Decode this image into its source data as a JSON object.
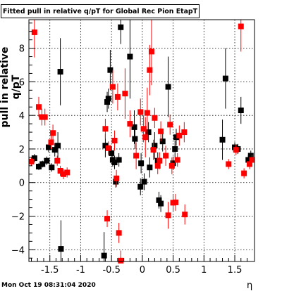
{
  "title": "Fitted pull in relative q/pT  for Global Rec Pion EtapT",
  "timestamp": "Mon Oct 19 08:31:04 2020",
  "chart_data": {
    "type": "scatter",
    "title": "Fitted pull in relative q/pT  for Global Rec Pion EtapT",
    "xlabel": "η",
    "ylabel": "pull in relative q/pT",
    "xlim": [
      -1.84,
      1.82
    ],
    "ylim": [
      -4.7,
      9.7
    ],
    "xticks": [
      -1.5,
      -1,
      -0.5,
      0,
      0.5,
      1,
      1.5
    ],
    "xtick_labels": [
      "-1.5",
      "-1",
      "-0.5",
      "0",
      "0.5",
      "1",
      "1.5"
    ],
    "yticks": [
      -4,
      -2,
      0,
      2,
      4,
      6,
      8
    ],
    "ytick_labels": [
      "−4",
      "−2",
      "0",
      "2",
      "4",
      "6",
      "8"
    ],
    "grid": true,
    "series": [
      {
        "color": "#000000",
        "points": [
          {
            "x": -1.75,
            "y": 1.45,
            "err": 0.25
          },
          {
            "x": -1.68,
            "y": 0.95,
            "err": 0.2
          },
          {
            "x": -1.62,
            "y": 1.1,
            "err": 0.2
          },
          {
            "x": -1.55,
            "y": 1.3,
            "err": 0.25
          },
          {
            "x": -1.52,
            "y": 2.1,
            "err": 0.3
          },
          {
            "x": -1.47,
            "y": 0.9,
            "err": 0.25
          },
          {
            "x": -1.42,
            "y": 1.95,
            "err": 0.4
          },
          {
            "x": -1.37,
            "y": 2.2,
            "err": 0.8
          },
          {
            "x": -1.33,
            "y": 6.6,
            "err": 2.0
          },
          {
            "x": -1.32,
            "y": -3.95,
            "err": 1.7
          },
          {
            "x": -0.62,
            "y": -4.35,
            "err": 1.4
          },
          {
            "x": -0.6,
            "y": 2.2,
            "err": 0.7
          },
          {
            "x": -0.57,
            "y": 4.8,
            "err": 0.6
          },
          {
            "x": -0.55,
            "y": 5.0,
            "err": 0.6
          },
          {
            "x": -0.52,
            "y": 6.7,
            "err": 1.2
          },
          {
            "x": -0.5,
            "y": 1.75,
            "err": 0.4
          },
          {
            "x": -0.48,
            "y": 1.35,
            "err": 0.4
          },
          {
            "x": -0.45,
            "y": 1.2,
            "err": 0.4
          },
          {
            "x": -0.43,
            "y": 0.05,
            "err": 0.35
          },
          {
            "x": -0.38,
            "y": 1.35,
            "err": 0.4
          },
          {
            "x": -0.35,
            "y": 9.25,
            "err": 1.0
          },
          {
            "x": -0.2,
            "y": 7.5,
            "err": 2.5
          },
          {
            "x": -0.13,
            "y": 3.3,
            "err": 1.0
          },
          {
            "x": -0.12,
            "y": 2.6,
            "err": 0.6
          },
          {
            "x": -0.03,
            "y": -0.25,
            "err": 0.5
          },
          {
            "x": -0.02,
            "y": 1.15,
            "err": 0.6
          },
          {
            "x": 0.03,
            "y": 0.05,
            "err": 0.5
          },
          {
            "x": 0.1,
            "y": 3.0,
            "err": 0.6
          },
          {
            "x": 0.12,
            "y": 0.9,
            "err": 0.6
          },
          {
            "x": 0.2,
            "y": 2.2,
            "err": 0.8
          },
          {
            "x": 0.25,
            "y": 1.3,
            "err": 0.5
          },
          {
            "x": 0.27,
            "y": -1.05,
            "err": 0.5
          },
          {
            "x": 0.3,
            "y": -1.25,
            "err": 0.5
          },
          {
            "x": 0.33,
            "y": 2.45,
            "err": 0.6
          },
          {
            "x": 0.42,
            "y": 5.7,
            "err": 1.8
          },
          {
            "x": 0.5,
            "y": 1.15,
            "err": 0.4
          },
          {
            "x": 0.53,
            "y": 2.0,
            "err": 0.5
          },
          {
            "x": 0.55,
            "y": 2.7,
            "err": 0.5
          },
          {
            "x": 1.3,
            "y": 2.55,
            "err": 1.2
          },
          {
            "x": 1.35,
            "y": 6.2,
            "err": 1.8
          },
          {
            "x": 1.5,
            "y": 2.1,
            "err": 0.3
          },
          {
            "x": 1.55,
            "y": 2.0,
            "err": 0.3
          },
          {
            "x": 1.6,
            "y": 4.3,
            "err": 0.8
          },
          {
            "x": 1.72,
            "y": 1.35,
            "err": 0.3
          },
          {
            "x": 1.76,
            "y": 1.6,
            "err": 0.3
          }
        ]
      },
      {
        "color": "#ff0000",
        "points": [
          {
            "x": -1.8,
            "y": 1.25,
            "err": 0.25
          },
          {
            "x": -1.75,
            "y": 8.95,
            "err": 1.5
          },
          {
            "x": -1.68,
            "y": 4.5,
            "err": 0.6
          },
          {
            "x": -1.63,
            "y": 3.9,
            "err": 0.5
          },
          {
            "x": -1.58,
            "y": 3.9,
            "err": 0.5
          },
          {
            "x": -1.48,
            "y": 2.4,
            "err": 0.4
          },
          {
            "x": -1.45,
            "y": 2.95,
            "err": 0.5
          },
          {
            "x": -1.38,
            "y": 1.3,
            "err": 0.3
          },
          {
            "x": -1.33,
            "y": 0.7,
            "err": 0.3
          },
          {
            "x": -1.28,
            "y": 0.5,
            "err": 0.3
          },
          {
            "x": -1.22,
            "y": 0.6,
            "err": 0.3
          },
          {
            "x": -0.6,
            "y": 3.2,
            "err": 0.6
          },
          {
            "x": -0.57,
            "y": -2.15,
            "err": 0.5
          },
          {
            "x": -0.55,
            "y": 2.05,
            "err": 0.4
          },
          {
            "x": -0.48,
            "y": 5.7,
            "err": 1.0
          },
          {
            "x": -0.45,
            "y": 2.5,
            "err": 0.6
          },
          {
            "x": -0.42,
            "y": 0.25,
            "err": 0.5
          },
          {
            "x": -0.4,
            "y": 5.1,
            "err": 0.8
          },
          {
            "x": -0.38,
            "y": -3.0,
            "err": 0.6
          },
          {
            "x": -0.35,
            "y": -4.65,
            "err": 0.6
          },
          {
            "x": -0.28,
            "y": 5.3,
            "err": 1.5
          },
          {
            "x": -0.2,
            "y": 3.5,
            "err": 0.8
          },
          {
            "x": -0.1,
            "y": 1.6,
            "err": 0.8
          },
          {
            "x": -0.03,
            "y": 4.2,
            "err": 0.8
          },
          {
            "x": 0.02,
            "y": 3.2,
            "err": 0.8
          },
          {
            "x": 0.05,
            "y": 2.7,
            "err": 1.2
          },
          {
            "x": 0.08,
            "y": 4.15,
            "err": 1.5
          },
          {
            "x": 0.12,
            "y": 6.7,
            "err": 1.5
          },
          {
            "x": 0.15,
            "y": 7.8,
            "err": 2.0
          },
          {
            "x": 0.18,
            "y": 1.95,
            "err": 0.6
          },
          {
            "x": 0.2,
            "y": 3.85,
            "err": 0.6
          },
          {
            "x": 0.25,
            "y": 1.0,
            "err": 0.5
          },
          {
            "x": 0.28,
            "y": 1.3,
            "err": 0.5
          },
          {
            "x": 0.3,
            "y": 3.05,
            "err": 0.6
          },
          {
            "x": 0.38,
            "y": 1.6,
            "err": 0.6
          },
          {
            "x": 0.42,
            "y": -1.95,
            "err": 0.8
          },
          {
            "x": 0.45,
            "y": 3.45,
            "err": 0.6
          },
          {
            "x": 0.48,
            "y": 1.0,
            "err": 0.5
          },
          {
            "x": 0.5,
            "y": -1.2,
            "err": 0.5
          },
          {
            "x": 0.54,
            "y": -1.18,
            "err": 0.5
          },
          {
            "x": 0.57,
            "y": 1.35,
            "err": 0.4
          },
          {
            "x": 0.6,
            "y": 2.8,
            "err": 0.6
          },
          {
            "x": 0.68,
            "y": 3.0,
            "err": 0.6
          },
          {
            "x": 0.69,
            "y": -1.9,
            "err": 0.6
          },
          {
            "x": 1.4,
            "y": 1.1,
            "err": 0.3
          },
          {
            "x": 1.52,
            "y": 1.95,
            "err": 0.3
          },
          {
            "x": 1.6,
            "y": 9.3,
            "err": 1.5
          },
          {
            "x": 1.65,
            "y": 0.55,
            "err": 0.3
          },
          {
            "x": 1.74,
            "y": 1.1,
            "err": 0.3
          },
          {
            "x": 1.78,
            "y": 1.35,
            "err": 0.3
          }
        ]
      }
    ]
  }
}
